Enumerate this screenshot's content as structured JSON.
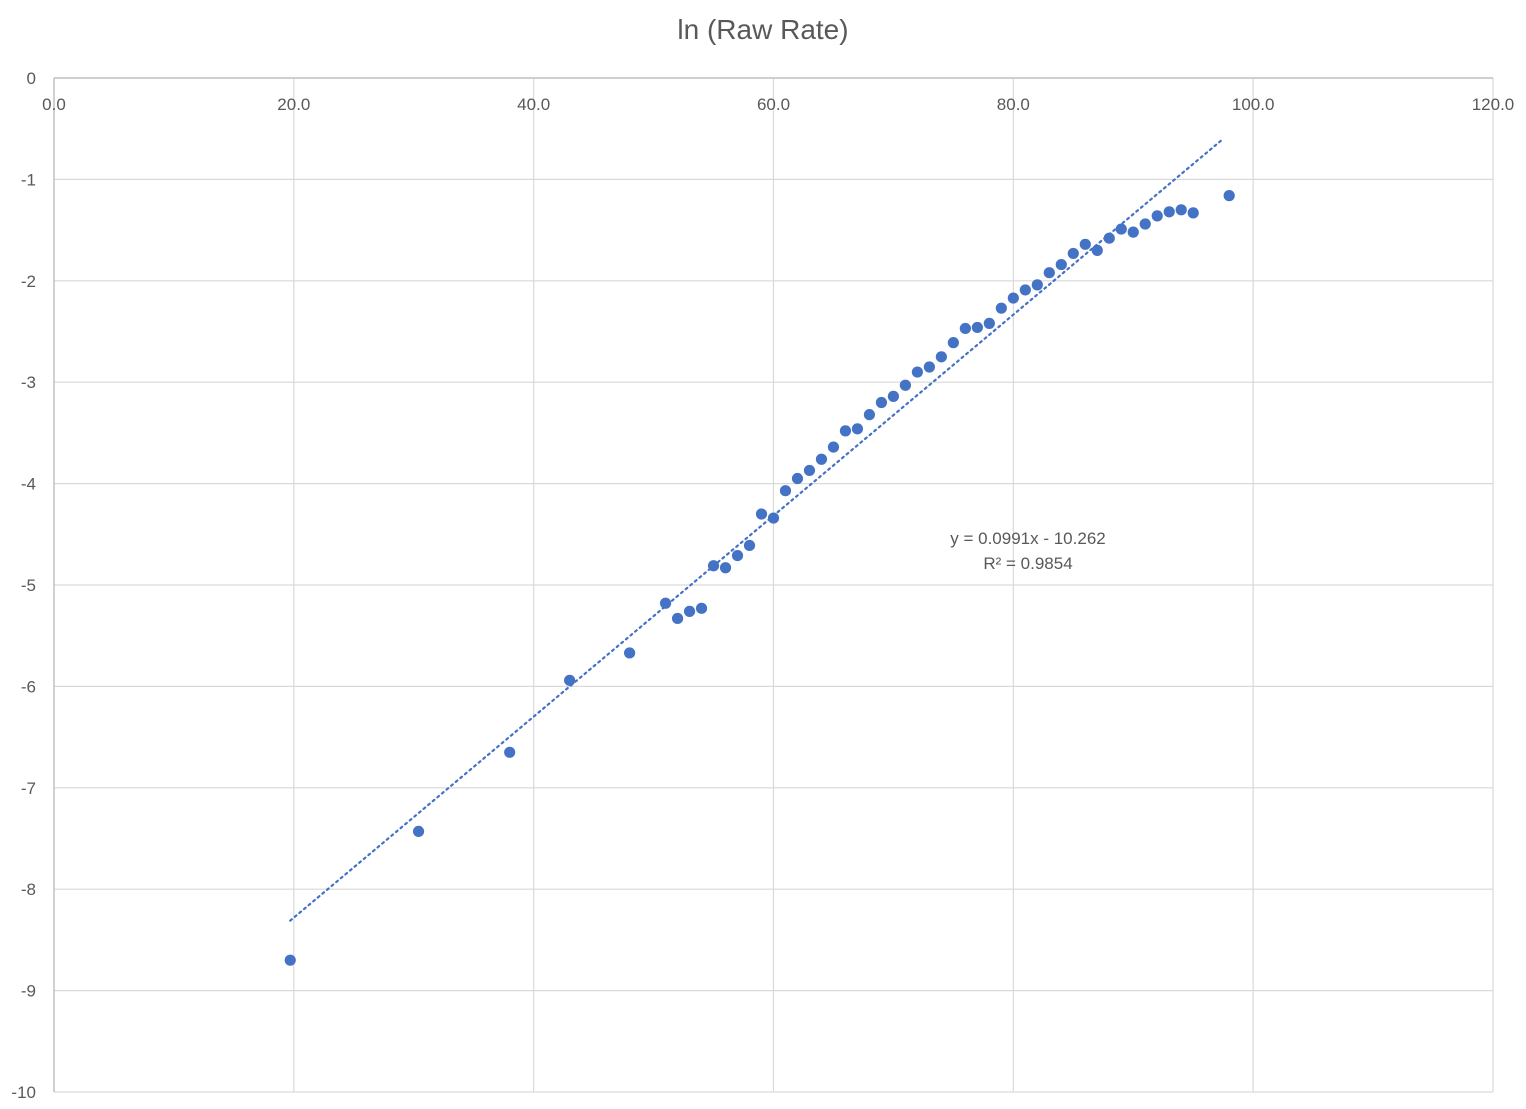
{
  "chart_data": {
    "type": "scatter",
    "title": "ln (Raw Rate)",
    "xlabel": "",
    "ylabel": "",
    "xlim": [
      0,
      120
    ],
    "ylim": [
      -10,
      0
    ],
    "x_ticks": [
      "0.0",
      "20.0",
      "40.0",
      "60.0",
      "80.0",
      "100.0",
      "120.0"
    ],
    "y_ticks": [
      "0",
      "-1",
      "-2",
      "-3",
      "-4",
      "-5",
      "-6",
      "-7",
      "-8",
      "-9",
      "-10"
    ],
    "x_tick_values": [
      0,
      20,
      40,
      60,
      80,
      100,
      120
    ],
    "y_tick_values": [
      0,
      -1,
      -2,
      -3,
      -4,
      -5,
      -6,
      -7,
      -8,
      -9,
      -10
    ],
    "x_axis_position": "top",
    "grid": true,
    "marker_color": "#4472C4",
    "series": [
      {
        "points": [
          [
            19.7,
            -8.7
          ],
          [
            30.4,
            -7.43
          ],
          [
            38.0,
            -6.65
          ],
          [
            43.0,
            -5.94
          ],
          [
            48.0,
            -5.67
          ],
          [
            51.0,
            -5.18
          ],
          [
            52.0,
            -5.33
          ],
          [
            53.0,
            -5.26
          ],
          [
            54.0,
            -5.23
          ],
          [
            55.0,
            -4.81
          ],
          [
            56.0,
            -4.83
          ],
          [
            57.0,
            -4.71
          ],
          [
            58.0,
            -4.61
          ],
          [
            59.0,
            -4.3
          ],
          [
            60.0,
            -4.34
          ],
          [
            61.0,
            -4.07
          ],
          [
            62.0,
            -3.95
          ],
          [
            63.0,
            -3.87
          ],
          [
            64.0,
            -3.76
          ],
          [
            65.0,
            -3.64
          ],
          [
            66.0,
            -3.48
          ],
          [
            67.0,
            -3.46
          ],
          [
            68.0,
            -3.32
          ],
          [
            69.0,
            -3.2
          ],
          [
            70.0,
            -3.14
          ],
          [
            71.0,
            -3.03
          ],
          [
            72.0,
            -2.9
          ],
          [
            73.0,
            -2.85
          ],
          [
            74.0,
            -2.75
          ],
          [
            75.0,
            -2.61
          ],
          [
            76.0,
            -2.47
          ],
          [
            77.0,
            -2.46
          ],
          [
            78.0,
            -2.42
          ],
          [
            79.0,
            -2.27
          ],
          [
            80.0,
            -2.17
          ],
          [
            81.0,
            -2.09
          ],
          [
            82.0,
            -2.04
          ],
          [
            83.0,
            -1.92
          ],
          [
            84.0,
            -1.84
          ],
          [
            85.0,
            -1.73
          ],
          [
            86.0,
            -1.64
          ],
          [
            87.0,
            -1.7
          ],
          [
            88.0,
            -1.58
          ],
          [
            89.0,
            -1.49
          ],
          [
            90.0,
            -1.52
          ],
          [
            91.0,
            -1.44
          ],
          [
            92.0,
            -1.36
          ],
          [
            93.0,
            -1.32
          ],
          [
            94.0,
            -1.3
          ],
          [
            95.0,
            -1.33
          ],
          [
            98.0,
            -1.16
          ]
        ]
      }
    ],
    "trendline": {
      "type": "linear",
      "slope": 0.0991,
      "intercept": -10.262,
      "x_range": [
        19.7,
        97.5
      ],
      "style": "dotted",
      "equation_label": "y = 0.0991x - 10.262",
      "r2_label": "R² = 0.9854"
    }
  }
}
